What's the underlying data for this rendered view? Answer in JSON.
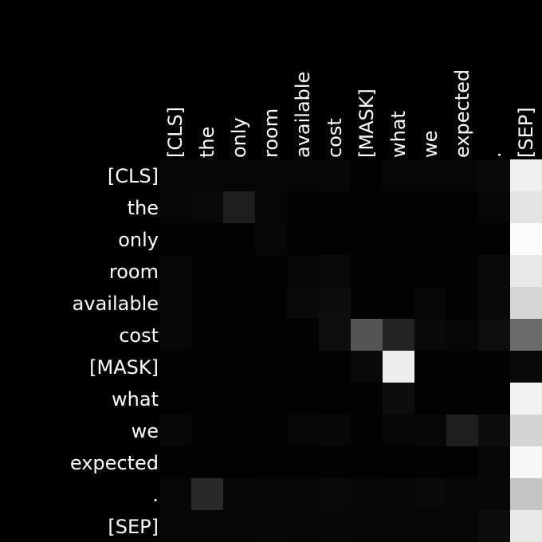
{
  "chart_data": {
    "type": "heatmap",
    "title": "",
    "xlabel": "",
    "ylabel": "",
    "x_tokens": [
      "[CLS]",
      "the",
      "only",
      "room",
      "available",
      "cost",
      "[MASK]",
      "what",
      "we",
      "expected",
      ".",
      "[SEP]"
    ],
    "y_tokens": [
      "[CLS]",
      "the",
      "only",
      "room",
      "available",
      "cost",
      "[MASK]",
      "what",
      "we",
      "expected",
      ".",
      "[SEP]"
    ],
    "value_range": [
      0,
      1
    ],
    "colormap": "grayscale",
    "values": [
      [
        0.02,
        0.03,
        0.02,
        0.02,
        0.02,
        0.03,
        0.01,
        0.02,
        0.02,
        0.02,
        0.04,
        0.94
      ],
      [
        0.02,
        0.04,
        0.12,
        0.02,
        0.01,
        0.01,
        0.01,
        0.01,
        0.01,
        0.01,
        0.02,
        0.89
      ],
      [
        0.01,
        0.01,
        0.01,
        0.03,
        0.01,
        0.01,
        0.01,
        0.01,
        0.01,
        0.01,
        0.01,
        0.98
      ],
      [
        0.03,
        0.01,
        0.01,
        0.01,
        0.02,
        0.04,
        0.01,
        0.01,
        0.01,
        0.01,
        0.04,
        0.91
      ],
      [
        0.03,
        0.01,
        0.01,
        0.01,
        0.04,
        0.05,
        0.01,
        0.01,
        0.02,
        0.01,
        0.04,
        0.84
      ],
      [
        0.03,
        0.01,
        0.01,
        0.01,
        0.01,
        0.06,
        0.33,
        0.14,
        0.04,
        0.02,
        0.06,
        0.42
      ],
      [
        0.01,
        0.01,
        0.01,
        0.01,
        0.01,
        0.01,
        0.04,
        0.93,
        0.01,
        0.01,
        0.01,
        0.04
      ],
      [
        0.01,
        0.01,
        0.01,
        0.01,
        0.01,
        0.01,
        0.01,
        0.05,
        0.01,
        0.01,
        0.01,
        0.95
      ],
      [
        0.03,
        0.01,
        0.01,
        0.01,
        0.02,
        0.03,
        0.01,
        0.02,
        0.03,
        0.12,
        0.05,
        0.83
      ],
      [
        0.01,
        0.01,
        0.01,
        0.01,
        0.01,
        0.01,
        0.01,
        0.01,
        0.01,
        0.01,
        0.03,
        0.97
      ],
      [
        0.02,
        0.16,
        0.03,
        0.02,
        0.02,
        0.04,
        0.02,
        0.03,
        0.04,
        0.02,
        0.03,
        0.77
      ],
      [
        0.02,
        0.02,
        0.02,
        0.03,
        0.02,
        0.03,
        0.02,
        0.02,
        0.02,
        0.02,
        0.05,
        0.91
      ]
    ]
  }
}
